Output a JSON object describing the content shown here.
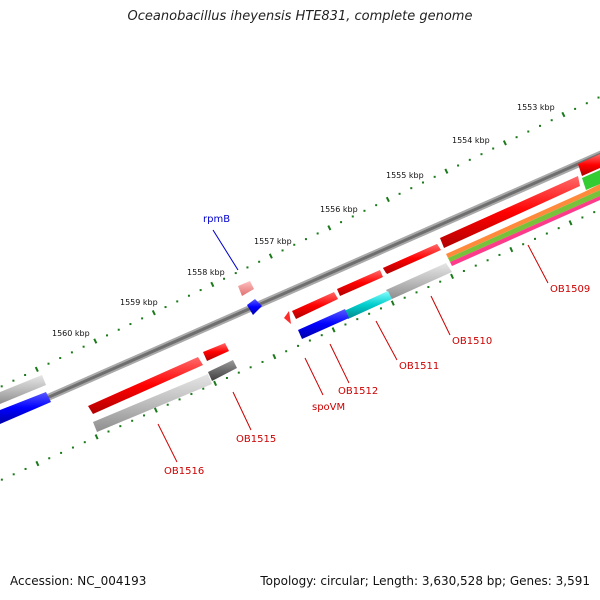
{
  "title": "Oceanobacillus iheyensis HTE831, complete genome",
  "footer": {
    "accession": "Accession: NC_004193",
    "summary": "Topology: circular; Length: 3,630,528 bp; Genes: 3,591"
  },
  "ruler": {
    "labels": [
      "1553 kbp",
      "1554 kbp",
      "1555 kbp",
      "1556 kbp",
      "1557 kbp",
      "1558 kbp",
      "1559 kbp",
      "1560 kbp"
    ]
  },
  "genes": {
    "rpmB": "rpmB",
    "OB1509": "OB1509",
    "OB1510": "OB1510",
    "OB1511": "OB1511",
    "OB1512": "OB1512",
    "spoVM": "spoVM",
    "OB1515": "OB1515",
    "OB1516": "OB1516"
  },
  "colors": {
    "forward_cds": "#ff0000",
    "reverse_cds": "#0000ff",
    "grey_feature": "#bbbbbb",
    "cyan_feature": "#00cccc",
    "green_feature": "#33cc33",
    "ruler": "#1a7a1a",
    "backbone": "#777777",
    "label_red": "#cc0000",
    "label_blue": "#0000cc"
  }
}
